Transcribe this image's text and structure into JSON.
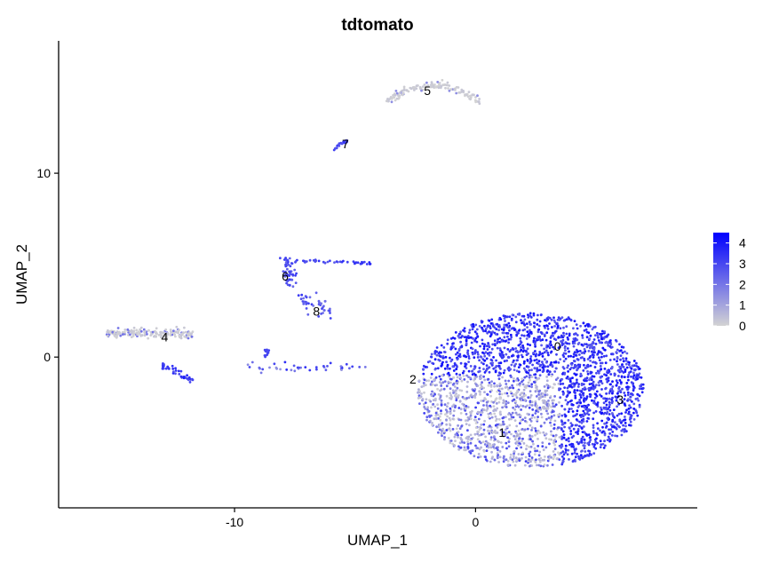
{
  "chart_data": {
    "type": "scatter",
    "title": "tdtomato",
    "xlabel": "UMAP_1",
    "ylabel": "UMAP_2",
    "xlim": [
      -17.3,
      9.2
    ],
    "ylim": [
      -8.2,
      17.2
    ],
    "x_ticks": [
      -10,
      0
    ],
    "y_ticks": [
      0,
      10
    ],
    "grid": false,
    "legend": {
      "placement": "right",
      "type": "colorbar",
      "min": 0,
      "max": 4.5,
      "ticks": [
        0,
        1,
        2,
        3,
        4
      ],
      "low_color": "#d3d3d3",
      "high_color": "#0000ff"
    },
    "clusters": [
      {
        "label": "0",
        "x": 3.4,
        "y": 0.6
      },
      {
        "label": "1",
        "x": 1.1,
        "y": -4.1
      },
      {
        "label": "2",
        "x": -2.6,
        "y": -1.2
      },
      {
        "label": "3",
        "x": 6.0,
        "y": -2.3
      },
      {
        "label": "4",
        "x": -12.9,
        "y": 1.1
      },
      {
        "label": "5",
        "x": -2.0,
        "y": 14.5
      },
      {
        "label": "6",
        "x": -7.9,
        "y": 4.4
      },
      {
        "label": "7",
        "x": -5.4,
        "y": 11.6
      },
      {
        "label": "8",
        "x": -6.6,
        "y": 2.5
      }
    ]
  }
}
